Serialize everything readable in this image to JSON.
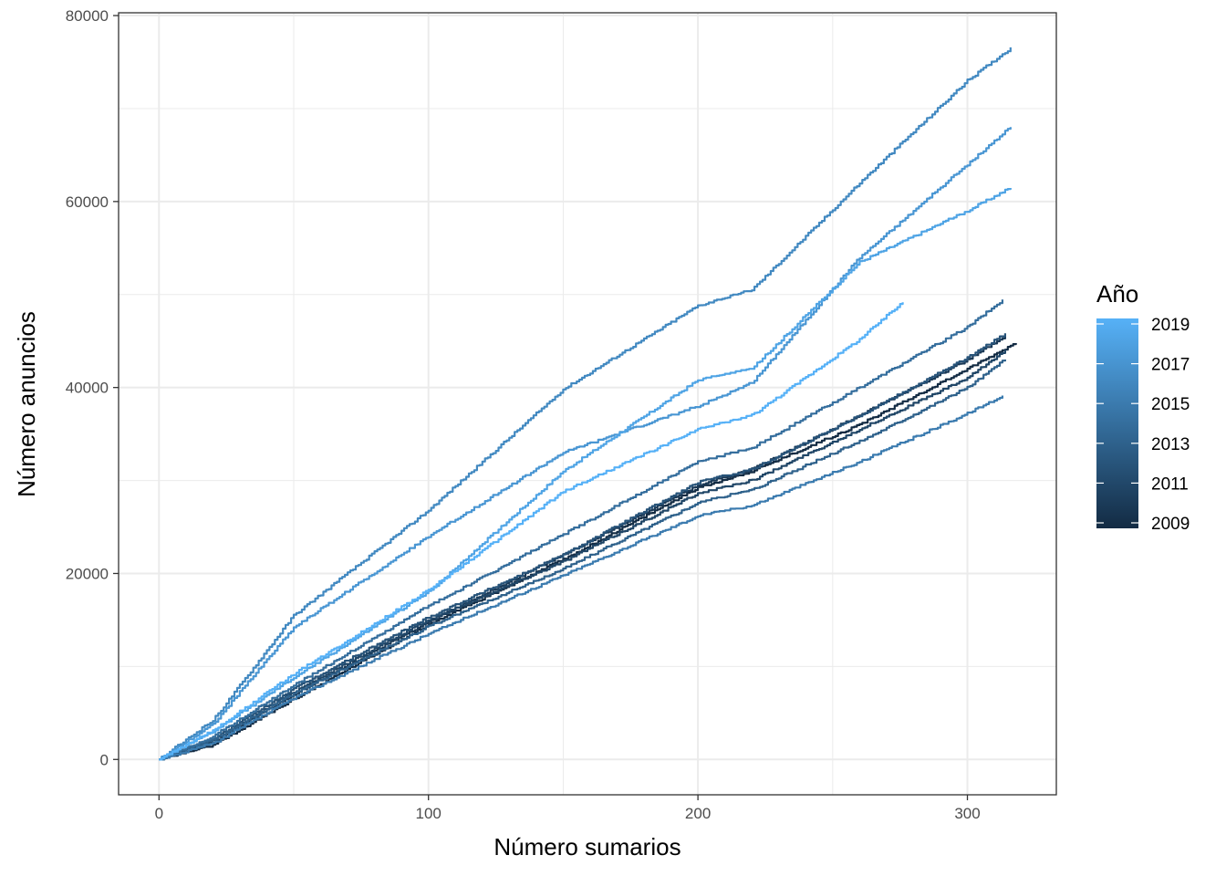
{
  "chart_data": {
    "type": "line",
    "title": "",
    "xlabel": "Número sumarios",
    "ylabel": "Número anuncios",
    "xlim": [
      -15,
      333
    ],
    "ylim": [
      -3800,
      80300
    ],
    "x_ticks": [
      0,
      100,
      200,
      300
    ],
    "y_ticks": [
      0,
      20000,
      40000,
      60000,
      80000
    ],
    "grid": true,
    "legend": {
      "title": "Año",
      "position": "right",
      "type": "colorbar",
      "range": [
        2009,
        2019
      ],
      "labels": [
        "2019",
        "2017",
        "2015",
        "2013",
        "2011",
        "2009"
      ],
      "low_color": "#132B43",
      "high_color": "#56B1F7"
    },
    "series": [
      {
        "year": 2009,
        "points": [
          [
            0,
            0
          ],
          [
            20,
            1500
          ],
          [
            50,
            6500
          ],
          [
            100,
            14500
          ],
          [
            150,
            21500
          ],
          [
            200,
            29200
          ],
          [
            220,
            31000
          ],
          [
            260,
            36000
          ],
          [
            300,
            42000
          ],
          [
            318,
            44800
          ]
        ]
      },
      {
        "year": 2010,
        "points": [
          [
            0,
            0
          ],
          [
            20,
            1800
          ],
          [
            50,
            7000
          ],
          [
            100,
            14800
          ],
          [
            150,
            22000
          ],
          [
            200,
            29500
          ],
          [
            220,
            31200
          ],
          [
            260,
            37000
          ],
          [
            300,
            43000
          ],
          [
            314,
            45500
          ]
        ]
      },
      {
        "year": 2011,
        "points": [
          [
            0,
            0
          ],
          [
            20,
            2000
          ],
          [
            50,
            7300
          ],
          [
            100,
            15000
          ],
          [
            150,
            21300
          ],
          [
            200,
            28600
          ],
          [
            220,
            30000
          ],
          [
            260,
            35500
          ],
          [
            300,
            41000
          ],
          [
            314,
            44000
          ]
        ]
      },
      {
        "year": 2012,
        "points": [
          [
            0,
            0
          ],
          [
            20,
            2200
          ],
          [
            50,
            7600
          ],
          [
            100,
            15300
          ],
          [
            150,
            22000
          ],
          [
            200,
            29800
          ],
          [
            220,
            31200
          ],
          [
            260,
            37000
          ],
          [
            300,
            43200
          ],
          [
            314,
            45800
          ]
        ]
      },
      {
        "year": 2013,
        "points": [
          [
            0,
            0
          ],
          [
            20,
            2100
          ],
          [
            50,
            7100
          ],
          [
            100,
            14300
          ],
          [
            150,
            20500
          ],
          [
            200,
            27600
          ],
          [
            220,
            29000
          ],
          [
            260,
            34200
          ],
          [
            300,
            40000
          ],
          [
            314,
            43000
          ]
        ]
      },
      {
        "year": 2014,
        "points": [
          [
            0,
            0
          ],
          [
            20,
            2500
          ],
          [
            50,
            8000
          ],
          [
            100,
            16500
          ],
          [
            150,
            24200
          ],
          [
            200,
            32000
          ],
          [
            220,
            33500
          ],
          [
            260,
            40000
          ],
          [
            300,
            46500
          ],
          [
            313,
            49400
          ]
        ]
      },
      {
        "year": 2015,
        "points": [
          [
            0,
            0
          ],
          [
            20,
            1700
          ],
          [
            50,
            6600
          ],
          [
            100,
            13500
          ],
          [
            150,
            19800
          ],
          [
            200,
            26200
          ],
          [
            220,
            27300
          ],
          [
            260,
            32000
          ],
          [
            300,
            37200
          ],
          [
            313,
            39100
          ]
        ]
      },
      {
        "year": 2016,
        "points": [
          [
            0,
            0
          ],
          [
            20,
            4200
          ],
          [
            50,
            15500
          ],
          [
            100,
            26800
          ],
          [
            150,
            39800
          ],
          [
            200,
            48800
          ],
          [
            220,
            50500
          ],
          [
            260,
            62000
          ],
          [
            300,
            73000
          ],
          [
            316,
            76500
          ]
        ]
      },
      {
        "year": 2017,
        "points": [
          [
            0,
            0
          ],
          [
            20,
            3800
          ],
          [
            50,
            14200
          ],
          [
            100,
            24000
          ],
          [
            150,
            33000
          ],
          [
            200,
            38000
          ],
          [
            220,
            40500
          ],
          [
            260,
            54000
          ],
          [
            300,
            64000
          ],
          [
            316,
            68000
          ]
        ]
      },
      {
        "year": 2018,
        "points": [
          [
            0,
            0
          ],
          [
            20,
            3000
          ],
          [
            50,
            8800
          ],
          [
            100,
            18000
          ],
          [
            150,
            31000
          ],
          [
            200,
            40800
          ],
          [
            220,
            42000
          ],
          [
            260,
            53500
          ],
          [
            300,
            59000
          ],
          [
            316,
            61500
          ]
        ]
      },
      {
        "year": 2019,
        "points": [
          [
            0,
            0
          ],
          [
            20,
            3100
          ],
          [
            50,
            9200
          ],
          [
            100,
            18200
          ],
          [
            150,
            28800
          ],
          [
            200,
            35500
          ],
          [
            220,
            37000
          ],
          [
            260,
            45200
          ],
          [
            276,
            49200
          ]
        ]
      }
    ]
  }
}
